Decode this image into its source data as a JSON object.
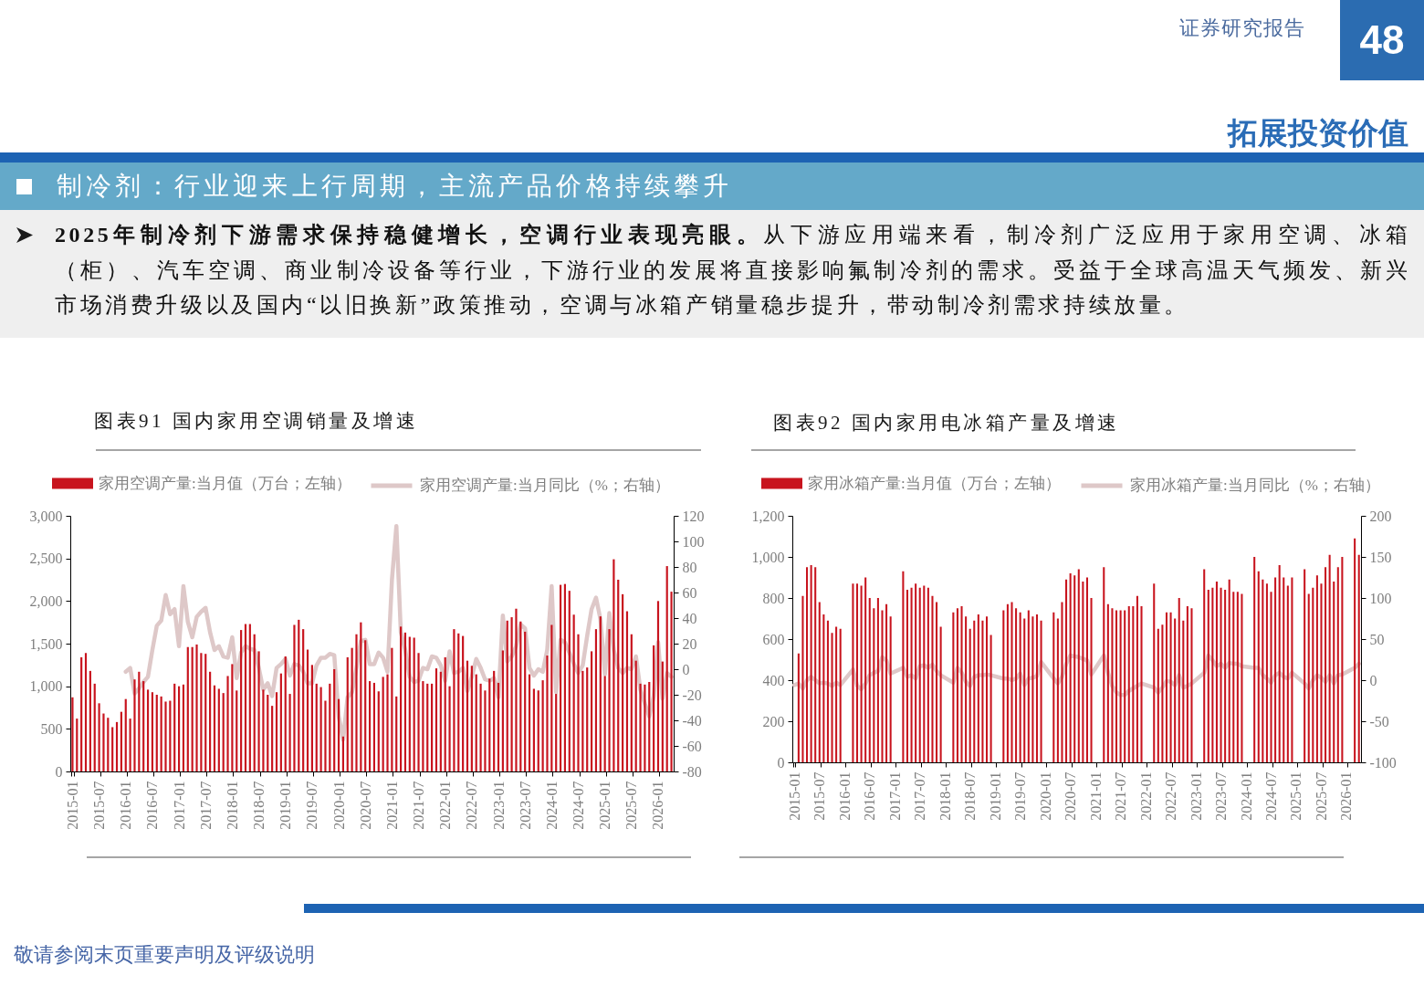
{
  "chart_data": [
    {
      "type": "other",
      "title": "制冷剂：行业迎来上行周期，主流产品价格持续攀升",
      "annotations": [
        "证券研究报告",
        "48",
        "拓展投资价值",
        "2025年制冷剂下游需求保持稳健增长，空调行业表现亮眼。",
        "从下游应用端来看，制冷剂广泛应用于家用空调、冰箱（柜）、汽车空调、商业制冷设备等行业，下游行业的发展将直接影响氟制冷剂的需求。受益于全球高温天气频发、新兴市场消费升级以及国内“以旧换新”政策推动，空调与冰箱产销量稳步提升，带动制冷剂需求持续放量。",
        "敬请参阅末页重要声明及评级说明"
      ]
    },
    {
      "type": "bar",
      "title": "图表91 国内家用空调销量及增速",
      "legend": "top",
      "categories": [
        "2015-01",
        null,
        null,
        null,
        null,
        null,
        "2015-07",
        null,
        null,
        null,
        null,
        null,
        "2016-01",
        null,
        null,
        null,
        null,
        null,
        "2016-07",
        null,
        null,
        null,
        null,
        null,
        "2017-01",
        null,
        null,
        null,
        null,
        null,
        "2017-07",
        null,
        null,
        null,
        null,
        null,
        "2018-01",
        null,
        null,
        null,
        null,
        null,
        "2018-07",
        null,
        null,
        null,
        null,
        null,
        "2019-01",
        null,
        null,
        null,
        null,
        null,
        "2019-07",
        null,
        null,
        null,
        null,
        null,
        "2020-01",
        null,
        null,
        null,
        null,
        null,
        "2020-07",
        null,
        null,
        null,
        null,
        null,
        "2021-01",
        null,
        null,
        null,
        null,
        null,
        "2021-07",
        null,
        null,
        null,
        null,
        null,
        "2022-01",
        null,
        null,
        null,
        null,
        null,
        "2022-07",
        null,
        null,
        null,
        null,
        null,
        "2023-01",
        null,
        null,
        null,
        null,
        null,
        "2023-07",
        null,
        null,
        null,
        null,
        null,
        "2024-01",
        null,
        null,
        null,
        null,
        null,
        "2024-07",
        null,
        null,
        null,
        null,
        null,
        "2025-01",
        null,
        null,
        null,
        null,
        null,
        "2025-07",
        null,
        null,
        null,
        null,
        null,
        "2026-01",
        null,
        null,
        null
      ],
      "series": [
        {
          "name": "家用空调产量:当月值（万台；左轴）",
          "color": "#c8141e",
          "values": [
            870,
            620,
            1340,
            1390,
            1180,
            1030,
            800,
            680,
            630,
            520,
            580,
            700,
            850,
            620,
            1080,
            1170,
            1060,
            960,
            930,
            900,
            880,
            820,
            830,
            1030,
            1000,
            1020,
            1460,
            1460,
            1490,
            1390,
            1380,
            1170,
            1010,
            970,
            920,
            1120,
            1260,
            950,
            1660,
            1730,
            1730,
            1610,
            1410,
            960,
            900,
            770,
            930,
            1150,
            1350,
            910,
            1720,
            1780,
            1670,
            1430,
            1250,
            1030,
            990,
            830,
            1030,
            1200,
            850,
            410,
            1340,
            1450,
            1610,
            1750,
            1540,
            1060,
            1040,
            940,
            1110,
            1140,
            1450,
            880,
            1700,
            1630,
            1580,
            1570,
            1390,
            1060,
            1030,
            1030,
            1210,
            1170,
            1340,
            1000,
            1670,
            1620,
            1590,
            1300,
            1240,
            1140,
            1030,
            950,
            1090,
            1180,
            1040,
            1420,
            1770,
            1810,
            1910,
            1760,
            1640,
            1140,
            970,
            950,
            1070,
            1360,
            1720,
            910,
            2190,
            2200,
            2120,
            1840,
            1610,
            1180,
            1220,
            1410,
            1670,
            1820,
            1120,
            1670,
            2490,
            2250,
            2080,
            1880,
            1610,
            1300,
            1030,
            1020,
            1050,
            1480,
            2000,
            1290,
            2410,
            2110
          ]
        },
        {
          "name": "家用空调产量:当月同比（%；右轴）",
          "type": "line",
          "axis": "y2",
          "color": "#dec8c8",
          "values": [
            null,
            null,
            null,
            null,
            null,
            null,
            null,
            null,
            null,
            null,
            null,
            null,
            -2,
            1,
            -19,
            -15,
            -10,
            -6,
            15,
            34,
            38,
            58,
            43,
            47,
            18,
            65,
            37,
            25,
            41,
            45,
            48,
            29,
            15,
            18,
            10,
            9,
            25,
            -7,
            13,
            18,
            16,
            15,
            1,
            -16,
            -11,
            -21,
            1,
            4,
            8,
            -5,
            4,
            3,
            -2,
            -11,
            -11,
            3,
            9,
            9,
            12,
            11,
            -37,
            -55,
            -22,
            -18,
            1,
            22,
            23,
            4,
            4,
            13,
            9,
            -2,
            70,
            112,
            29,
            15,
            -6,
            -10,
            -9,
            1,
            0,
            10,
            9,
            3,
            -9,
            14,
            -3,
            -2,
            1,
            -17,
            -6,
            8,
            1,
            -8,
            -9,
            -7,
            -22,
            42,
            6,
            10,
            18,
            35,
            32,
            1,
            -5,
            0,
            -2,
            15,
            65,
            -18,
            23,
            21,
            13,
            4,
            -3,
            3,
            26,
            47,
            56,
            39,
            -4,
            44,
            15,
            1,
            -3,
            1,
            0,
            10,
            -16,
            -27,
            -37,
            -21,
            21,
            -23,
            -3,
            -6
          ]
        }
      ],
      "ylim": [
        0,
        3000
      ],
      "yticks": [
        0,
        500,
        {
          "value": 1000,
          "label": "1,000"
        },
        {
          "value": 1500,
          "label": "1,500"
        },
        {
          "value": 2000,
          "label": "2,000"
        },
        {
          "value": 2500,
          "label": "2,500"
        },
        {
          "value": 3000,
          "label": "3,000"
        }
      ],
      "y2lim": [
        -80,
        120
      ],
      "y2ticks": [
        -80,
        -60,
        -40,
        -20,
        0,
        20,
        40,
        60,
        80,
        100,
        120
      ]
    },
    {
      "type": "bar",
      "title": "图表92 国内家用电冰箱产量及增速",
      "legend": "top",
      "categories": [
        "2015-01",
        null,
        null,
        null,
        null,
        null,
        "2015-07",
        null,
        null,
        null,
        null,
        null,
        "2016-01",
        null,
        null,
        null,
        null,
        null,
        "2016-07",
        null,
        null,
        null,
        null,
        null,
        "2017-01",
        null,
        null,
        null,
        null,
        null,
        "2017-07",
        null,
        null,
        null,
        null,
        null,
        "2018-01",
        null,
        null,
        null,
        null,
        null,
        "2018-07",
        null,
        null,
        null,
        null,
        null,
        "2019-01",
        null,
        null,
        null,
        null,
        null,
        "2019-07",
        null,
        null,
        null,
        null,
        null,
        "2020-01",
        null,
        null,
        null,
        null,
        null,
        "2020-07",
        null,
        null,
        null,
        null,
        null,
        "2021-01",
        null,
        null,
        null,
        null,
        null,
        "2021-07",
        null,
        null,
        null,
        null,
        null,
        "2022-01",
        null,
        null,
        null,
        null,
        null,
        "2022-07",
        null,
        null,
        null,
        null,
        null,
        "2023-01",
        null,
        null,
        null,
        null,
        null,
        "2023-07",
        null,
        null,
        null,
        null,
        null,
        "2024-01",
        null,
        null,
        null,
        null,
        null,
        "2024-07",
        null,
        null,
        null,
        null,
        null,
        "2025-01",
        null,
        null,
        null,
        null,
        null,
        "2025-07",
        null,
        null,
        null,
        null,
        null,
        "2026-01",
        null,
        null,
        null
      ],
      "series": [
        {
          "name": "家用冰箱产量:当月值（万台；左轴）",
          "color": "#c8141e",
          "values": [
            null,
            530,
            810,
            950,
            960,
            950,
            780,
            720,
            690,
            630,
            660,
            650,
            null,
            null,
            870,
            870,
            860,
            900,
            800,
            750,
            800,
            740,
            770,
            710,
            null,
            null,
            930,
            840,
            850,
            870,
            850,
            860,
            850,
            810,
            780,
            660,
            null,
            null,
            730,
            750,
            760,
            710,
            650,
            690,
            720,
            690,
            710,
            620,
            null,
            null,
            740,
            770,
            780,
            750,
            730,
            700,
            740,
            710,
            720,
            690,
            null,
            null,
            730,
            700,
            780,
            890,
            920,
            910,
            940,
            880,
            900,
            800,
            null,
            null,
            950,
            770,
            750,
            740,
            740,
            740,
            760,
            760,
            810,
            760,
            null,
            null,
            870,
            650,
            670,
            730,
            730,
            700,
            800,
            690,
            760,
            750,
            null,
            null,
            940,
            840,
            850,
            880,
            850,
            840,
            890,
            830,
            830,
            820,
            null,
            null,
            1000,
            930,
            890,
            870,
            830,
            900,
            960,
            900,
            860,
            900,
            null,
            null,
            940,
            820,
            850,
            910,
            870,
            950,
            1010,
            880,
            950,
            1000,
            null,
            null,
            1090,
            1010
          ]
        },
        {
          "name": "家用冰箱产量:当月同比（%；右轴）",
          "type": "line",
          "axis": "y2",
          "color": "#dec8c8",
          "values": [
            -6,
            -4,
            -10,
            0,
            4,
            0,
            -4,
            -3,
            -4,
            -7,
            -3,
            -6,
            null,
            null,
            13,
            -7,
            -11,
            -4,
            6,
            9,
            11,
            28,
            24,
            8,
            null,
            null,
            15,
            4,
            6,
            2,
            17,
            18,
            15,
            19,
            11,
            6,
            null,
            null,
            -3,
            15,
            9,
            -2,
            -7,
            4,
            6,
            6,
            7,
            6,
            null,
            null,
            2,
            2,
            0,
            2,
            8,
            -6,
            2,
            3,
            5,
            22,
            null,
            null,
            2,
            -4,
            4,
            20,
            30,
            29,
            28,
            26,
            24,
            7,
            null,
            null,
            30,
            9,
            -7,
            -15,
            -18,
            -18,
            -13,
            -10,
            -7,
            -4,
            null,
            null,
            -9,
            -15,
            -9,
            -1,
            -2,
            -6,
            6,
            -9,
            -7,
            -4,
            null,
            null,
            9,
            30,
            24,
            17,
            20,
            15,
            21,
            20,
            20,
            17,
            null,
            null,
            15,
            15,
            6,
            2,
            -3,
            6,
            9,
            4,
            2,
            9,
            null,
            null,
            -4,
            -10,
            0,
            6,
            3,
            -2,
            6,
            -4,
            6,
            7,
            null,
            null,
            15,
            20
          ]
        }
      ],
      "ylim": [
        0,
        1200
      ],
      "yticks": [
        0,
        200,
        400,
        600,
        800,
        {
          "value": 1000,
          "label": "1,000"
        },
        {
          "value": 1200,
          "label": "1,200"
        }
      ],
      "y2lim": [
        -100,
        200
      ],
      "y2ticks": [
        -100,
        -50,
        0,
        50,
        100,
        150,
        200
      ]
    }
  ]
}
